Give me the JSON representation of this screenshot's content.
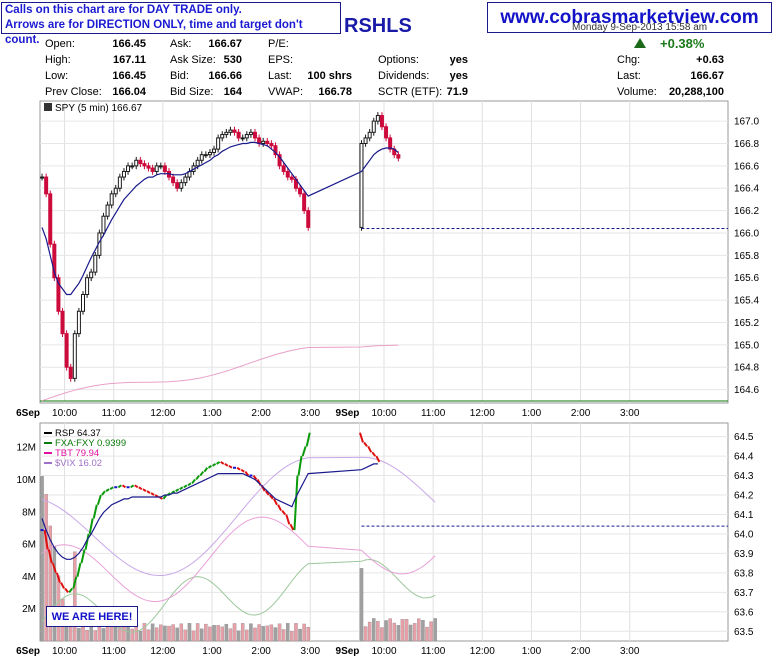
{
  "banner": {
    "line1": "Calls on this chart are for DAY TRADE only.",
    "line2": "Arrows are for DIRECTION ONLY, time and target don't count.",
    "website": "www.cobrasmarketview.com",
    "ticker_fragment": "RSHLS",
    "date_line": "Monday  9-Sep-2013  15:58 am"
  },
  "quote": {
    "open_label": "Open:",
    "open": "166.45",
    "high_label": "High:",
    "high": "167.11",
    "low_label": "Low:",
    "low": "166.45",
    "prev_close_label": "Prev Close:",
    "prev_close": "166.04",
    "ask_label": "Ask:",
    "ask": "166.67",
    "ask_size_label": "Ask Size:",
    "ask_size": "530",
    "bid_label": "Bid:",
    "bid": "166.66",
    "bid_size_label": "Bid Size:",
    "bid_size": "164",
    "pe_label": "P/E:",
    "eps_label": "EPS:",
    "last_shrs_label": "Last:",
    "last_shrs": "100 shrs",
    "vwap_label": "VWAP:",
    "vwap": "166.78",
    "options_label": "Options:",
    "options": "yes",
    "dividends_label": "Dividends:",
    "dividends": "yes",
    "sctr_label": "SCTR (ETF):",
    "sctr": "71.9",
    "pct_change": "+0.38%",
    "chg_label": "Chg:",
    "chg": "+0.63",
    "last_label": "Last:",
    "last": "166.67",
    "volume_label": "Volume:",
    "volume": "20,288,100"
  },
  "annotation": "WE ARE HERE!",
  "colors": {
    "up": "#1a1a1a",
    "down": "#cc0a3c",
    "ma": "#1a1a8c",
    "green": "#0a9a0a",
    "blue": "#1414d2",
    "red": "#e01010",
    "vwap_pink": "#e8a0c8",
    "vol_gray": "#a0a0a0",
    "vol_pink": "#e8a0a8"
  },
  "chart_data": [
    {
      "type": "line",
      "title": "SPY (5 min) 166.67",
      "y_ticks": [
        "167.0",
        "166.8",
        "166.6",
        "166.4",
        "166.2",
        "166.0",
        "165.8",
        "165.6",
        "165.4",
        "165.2",
        "165.0",
        "164.8",
        "164.6"
      ],
      "ylim": [
        164.48,
        167.18
      ],
      "x_ticks": [
        "6Sep",
        "10:00",
        "11:00",
        "12:00",
        "1:00",
        "2:00",
        "3:00",
        "9Sep",
        "10:00",
        "11:00",
        "12:00",
        "1:00",
        "2:00",
        "3:00"
      ],
      "reference_level": 166.04,
      "series": [
        {
          "name": "SPY",
          "values": [
            166.5,
            166.35,
            165.9,
            165.6,
            165.3,
            165.1,
            164.8,
            164.7,
            165.1,
            165.3,
            165.45,
            165.6,
            165.65,
            165.8,
            166.0,
            166.15,
            166.25,
            166.35,
            166.4,
            166.5,
            166.55,
            166.6,
            166.6,
            166.65,
            166.62,
            166.6,
            166.58,
            166.55,
            166.6,
            166.6,
            166.55,
            166.5,
            166.45,
            166.4,
            166.45,
            166.5,
            166.55,
            166.6,
            166.65,
            166.7,
            166.7,
            166.72,
            166.75,
            166.85,
            166.88,
            166.9,
            166.92,
            166.9,
            166.85,
            166.85,
            166.88,
            166.9,
            166.85,
            166.8,
            166.82,
            166.8,
            166.78,
            166.7,
            166.6,
            166.55,
            166.5,
            166.48,
            166.4,
            166.35,
            166.2,
            166.05,
            166.8,
            166.85,
            166.9,
            167.0,
            167.05,
            166.95,
            166.85,
            166.75,
            166.7,
            166.67
          ]
        },
        {
          "name": "MA",
          "values": [
            166.05,
            165.95,
            165.8,
            165.65,
            165.55,
            165.5,
            165.45,
            165.45,
            165.5,
            165.55,
            165.62,
            165.7,
            165.78,
            165.85,
            165.92,
            165.98,
            166.05,
            166.12,
            166.18,
            166.24,
            166.3,
            166.34,
            166.38,
            166.42,
            166.45,
            166.48,
            166.5,
            166.5,
            166.52,
            166.53,
            166.53,
            166.53,
            166.52,
            166.52,
            166.52,
            166.53,
            166.55,
            166.57,
            166.59,
            166.61,
            166.63,
            166.65,
            166.68,
            166.7,
            166.73,
            166.75,
            166.77,
            166.78,
            166.79,
            166.8,
            166.8,
            166.81,
            166.81,
            166.8,
            166.79,
            166.78,
            166.75,
            166.72,
            166.68,
            166.63,
            166.58,
            166.53,
            166.48,
            166.43,
            166.38,
            166.33,
            166.55,
            166.6,
            166.65,
            166.7,
            166.73,
            166.75,
            166.76,
            166.76,
            166.75,
            166.72
          ]
        }
      ]
    },
    {
      "type": "line",
      "title": "RSP 64.37",
      "y_ticks": [
        "64.5",
        "64.4",
        "64.3",
        "64.2",
        "64.1",
        "64.0",
        "63.9",
        "63.8",
        "63.7",
        "63.6",
        "63.5"
      ],
      "ylim": [
        63.45,
        64.57
      ],
      "volume_ticks": [
        "12M",
        "10M",
        "8M",
        "6M",
        "4M",
        "2M"
      ],
      "x_ticks": [
        "6Sep",
        "10:00",
        "11:00",
        "12:00",
        "1:00",
        "2:00",
        "3:00",
        "9Sep",
        "10:00",
        "11:00",
        "12:00",
        "1:00",
        "2:00",
        "3:00"
      ],
      "reference_level": 64.04,
      "legend": [
        {
          "name": "RSP 64.37",
          "color": "#000000"
        },
        {
          "name": "FXA:FXY 0.9399",
          "color": "#0a7a0a"
        },
        {
          "name": "TBT 79.94",
          "color": "#e010a0"
        },
        {
          "name": "$VIX 16.02",
          "color": "#a070c8"
        }
      ],
      "series": [
        {
          "name": "RSP",
          "values": [
            64.02,
            63.92,
            63.85,
            63.8,
            63.75,
            63.72,
            63.7,
            63.72,
            63.78,
            63.85,
            63.92,
            64.0,
            64.08,
            64.15,
            64.2,
            64.22,
            64.23,
            64.24,
            64.24,
            64.25,
            64.24,
            64.24,
            64.25,
            64.24,
            64.23,
            64.22,
            64.21,
            64.2,
            64.19,
            64.18,
            64.2,
            64.21,
            64.22,
            64.23,
            64.24,
            64.25,
            64.26,
            64.28,
            64.3,
            64.32,
            64.34,
            64.35,
            64.36,
            64.37,
            64.36,
            64.35,
            64.34,
            64.34,
            64.33,
            64.32,
            64.3,
            64.3,
            64.28,
            64.25,
            64.22,
            64.2,
            64.18,
            64.15,
            64.12,
            64.1,
            64.05,
            64.02,
            64.3,
            64.4,
            64.45,
            64.52,
            64.47,
            64.45,
            64.42,
            64.4,
            64.37
          ]
        },
        {
          "name": "MA",
          "values": [
            64.08,
            64.02,
            63.97,
            63.93,
            63.9,
            63.88,
            63.87,
            63.87,
            63.88,
            63.9,
            63.93,
            63.97,
            64.0,
            64.04,
            64.08,
            64.11,
            64.13,
            64.15,
            64.16,
            64.17,
            64.18,
            64.18,
            64.19,
            64.19,
            64.19,
            64.19,
            64.19,
            64.19,
            64.19,
            64.19,
            64.2,
            64.2,
            64.21,
            64.21,
            64.22,
            64.23,
            64.24,
            64.25,
            64.26,
            64.27,
            64.28,
            64.29,
            64.3,
            64.31,
            64.31,
            64.31,
            64.31,
            64.31,
            64.31,
            64.31,
            64.3,
            64.29,
            64.28,
            64.26,
            64.24,
            64.22,
            64.2,
            64.18,
            64.17,
            64.16,
            64.15,
            64.14,
            64.19,
            64.23,
            64.27,
            64.31,
            64.33,
            64.34,
            64.35,
            64.36,
            64.36
          ]
        }
      ]
    }
  ]
}
